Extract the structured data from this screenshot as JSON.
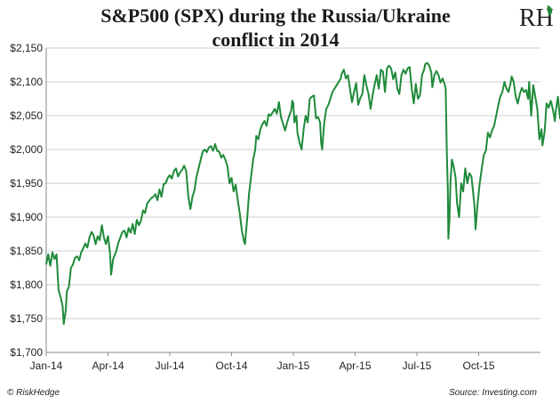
{
  "header": {
    "title_line1": "S&P500 (SPX) during the Russia/Ukraine",
    "title_line2": "conflict in 2014"
  },
  "logo": {
    "text": "RH",
    "accent_color": "#1f8a3a"
  },
  "footer": {
    "copyright": "© RiskHedge",
    "source": "Source: Investing.com"
  },
  "chart_data": {
    "type": "line",
    "title": "S&P500 (SPX) during the Russia/Ukraine conflict in 2014",
    "xlabel": "",
    "ylabel": "",
    "ylim": [
      1700,
      2150
    ],
    "y_ticks": [
      1700,
      1750,
      1800,
      1850,
      1900,
      1950,
      2000,
      2050,
      2100,
      2150
    ],
    "y_tick_labels": [
      "$1,700",
      "$1,750",
      "$1,800",
      "$1,850",
      "$1,900",
      "$1,950",
      "$2,000",
      "$2,050",
      "$2,100",
      "$2,150"
    ],
    "x_range": [
      0,
      24
    ],
    "x_ticks": [
      0,
      3,
      6,
      9,
      12,
      15,
      18,
      21
    ],
    "x_tick_labels": [
      "Jan-14",
      "Apr-14",
      "Jul-14",
      "Oct-14",
      "Jan-15",
      "Apr-15",
      "Jul-15",
      "Oct-15"
    ],
    "grid": true,
    "series": [
      {
        "name": "SPX",
        "color": "#1f8a3a",
        "points": [
          [
            0.0,
            1830
          ],
          [
            0.1,
            1845
          ],
          [
            0.2,
            1828
          ],
          [
            0.3,
            1848
          ],
          [
            0.4,
            1838
          ],
          [
            0.5,
            1845
          ],
          [
            0.6,
            1792
          ],
          [
            0.7,
            1782
          ],
          [
            0.8,
            1768
          ],
          [
            0.85,
            1742
          ],
          [
            0.95,
            1762
          ],
          [
            1.0,
            1790
          ],
          [
            1.1,
            1797
          ],
          [
            1.2,
            1825
          ],
          [
            1.3,
            1830
          ],
          [
            1.4,
            1840
          ],
          [
            1.5,
            1842
          ],
          [
            1.6,
            1836
          ],
          [
            1.7,
            1848
          ],
          [
            1.8,
            1854
          ],
          [
            1.9,
            1861
          ],
          [
            2.0,
            1855
          ],
          [
            2.1,
            1870
          ],
          [
            2.2,
            1878
          ],
          [
            2.3,
            1873
          ],
          [
            2.4,
            1860
          ],
          [
            2.5,
            1872
          ],
          [
            2.6,
            1866
          ],
          [
            2.7,
            1888
          ],
          [
            2.8,
            1870
          ],
          [
            2.9,
            1860
          ],
          [
            3.0,
            1872
          ],
          [
            3.1,
            1846
          ],
          [
            3.15,
            1815
          ],
          [
            3.25,
            1838
          ],
          [
            3.4,
            1850
          ],
          [
            3.5,
            1862
          ],
          [
            3.6,
            1870
          ],
          [
            3.7,
            1878
          ],
          [
            3.8,
            1880
          ],
          [
            3.9,
            1870
          ],
          [
            4.0,
            1884
          ],
          [
            4.1,
            1877
          ],
          [
            4.2,
            1890
          ],
          [
            4.3,
            1875
          ],
          [
            4.4,
            1896
          ],
          [
            4.5,
            1888
          ],
          [
            4.6,
            1895
          ],
          [
            4.7,
            1910
          ],
          [
            4.8,
            1906
          ],
          [
            4.9,
            1920
          ],
          [
            5.0,
            1924
          ],
          [
            5.1,
            1928
          ],
          [
            5.2,
            1930
          ],
          [
            5.3,
            1934
          ],
          [
            5.4,
            1925
          ],
          [
            5.5,
            1941
          ],
          [
            5.6,
            1930
          ],
          [
            5.7,
            1949
          ],
          [
            5.8,
            1950
          ],
          [
            5.9,
            1958
          ],
          [
            6.0,
            1962
          ],
          [
            6.1,
            1957
          ],
          [
            6.2,
            1968
          ],
          [
            6.3,
            1972
          ],
          [
            6.4,
            1960
          ],
          [
            6.5,
            1966
          ],
          [
            6.6,
            1970
          ],
          [
            6.7,
            1976
          ],
          [
            6.8,
            1968
          ],
          [
            6.9,
            1930
          ],
          [
            6.95,
            1921
          ],
          [
            7.0,
            1912
          ],
          [
            7.1,
            1930
          ],
          [
            7.2,
            1940
          ],
          [
            7.3,
            1960
          ],
          [
            7.4,
            1972
          ],
          [
            7.5,
            1985
          ],
          [
            7.6,
            1997
          ],
          [
            7.7,
            2000
          ],
          [
            7.8,
            1996
          ],
          [
            7.9,
            2003
          ],
          [
            8.0,
            2005
          ],
          [
            8.1,
            1998
          ],
          [
            8.2,
            2008
          ],
          [
            8.3,
            1998
          ],
          [
            8.4,
            1997
          ],
          [
            8.5,
            1988
          ],
          [
            8.6,
            1992
          ],
          [
            8.7,
            1985
          ],
          [
            8.8,
            1975
          ],
          [
            8.9,
            1950
          ],
          [
            9.0,
            1958
          ],
          [
            9.1,
            1938
          ],
          [
            9.2,
            1948
          ],
          [
            9.3,
            1925
          ],
          [
            9.4,
            1905
          ],
          [
            9.5,
            1880
          ],
          [
            9.6,
            1865
          ],
          [
            9.65,
            1860
          ],
          [
            9.75,
            1895
          ],
          [
            9.85,
            1935
          ],
          [
            9.95,
            1960
          ],
          [
            10.05,
            1985
          ],
          [
            10.15,
            2000
          ],
          [
            10.2,
            2020
          ],
          [
            10.3,
            2015
          ],
          [
            10.4,
            2030
          ],
          [
            10.5,
            2038
          ],
          [
            10.6,
            2042
          ],
          [
            10.7,
            2035
          ],
          [
            10.8,
            2052
          ],
          [
            10.9,
            2050
          ],
          [
            11.0,
            2055
          ],
          [
            11.1,
            2060
          ],
          [
            11.2,
            2053
          ],
          [
            11.3,
            2070
          ],
          [
            11.4,
            2048
          ],
          [
            11.5,
            2038
          ],
          [
            11.6,
            2028
          ],
          [
            11.7,
            2040
          ],
          [
            11.8,
            2050
          ],
          [
            11.9,
            2058
          ],
          [
            11.95,
            2072
          ],
          [
            12.0,
            2068
          ],
          [
            12.05,
            2040
          ],
          [
            12.15,
            2050
          ],
          [
            12.2,
            2025
          ],
          [
            12.3,
            2010
          ],
          [
            12.4,
            2000
          ],
          [
            12.5,
            2030
          ],
          [
            12.6,
            2050
          ],
          [
            12.7,
            2040
          ],
          [
            12.8,
            2075
          ],
          [
            12.9,
            2078
          ],
          [
            13.0,
            2080
          ],
          [
            13.1,
            2046
          ],
          [
            13.2,
            2048
          ],
          [
            13.3,
            2040
          ],
          [
            13.35,
            2010
          ],
          [
            13.4,
            2000
          ],
          [
            13.5,
            2040
          ],
          [
            13.6,
            2060
          ],
          [
            13.7,
            2066
          ],
          [
            13.8,
            2075
          ],
          [
            13.9,
            2085
          ],
          [
            14.0,
            2090
          ],
          [
            14.1,
            2095
          ],
          [
            14.2,
            2100
          ],
          [
            14.3,
            2105
          ],
          [
            14.35,
            2112
          ],
          [
            14.45,
            2118
          ],
          [
            14.55,
            2105
          ],
          [
            14.65,
            2110
          ],
          [
            14.75,
            2090
          ],
          [
            14.85,
            2070
          ],
          [
            14.95,
            2085
          ],
          [
            15.05,
            2098
          ],
          [
            15.15,
            2066
          ],
          [
            15.25,
            2076
          ],
          [
            15.35,
            2082
          ],
          [
            15.45,
            2110
          ],
          [
            15.55,
            2095
          ],
          [
            15.65,
            2082
          ],
          [
            15.75,
            2060
          ],
          [
            15.85,
            2080
          ],
          [
            15.95,
            2096
          ],
          [
            16.05,
            2110
          ],
          [
            16.15,
            2090
          ],
          [
            16.25,
            2118
          ],
          [
            16.35,
            2115
          ],
          [
            16.45,
            2085
          ],
          [
            16.55,
            2120
          ],
          [
            16.65,
            2124
          ],
          [
            16.75,
            2120
          ],
          [
            16.85,
            2104
          ],
          [
            16.95,
            2114
          ],
          [
            17.05,
            2090
          ],
          [
            17.15,
            2082
          ],
          [
            17.25,
            2110
          ],
          [
            17.35,
            2118
          ],
          [
            17.45,
            2112
          ],
          [
            17.55,
            2120
          ],
          [
            17.65,
            2122
          ],
          [
            17.75,
            2090
          ],
          [
            17.85,
            2068
          ],
          [
            17.95,
            2097
          ],
          [
            18.05,
            2075
          ],
          [
            18.15,
            2080
          ],
          [
            18.25,
            2110
          ],
          [
            18.35,
            2118
          ],
          [
            18.4,
            2126
          ],
          [
            18.5,
            2128
          ],
          [
            18.6,
            2124
          ],
          [
            18.7,
            2114
          ],
          [
            18.75,
            2092
          ],
          [
            18.85,
            2110
          ],
          [
            18.95,
            2116
          ],
          [
            19.05,
            2110
          ],
          [
            19.15,
            2099
          ],
          [
            19.25,
            2105
          ],
          [
            19.35,
            2096
          ],
          [
            19.4,
            2090
          ],
          [
            19.45,
            2000
          ],
          [
            19.5,
            1940
          ],
          [
            19.53,
            1868
          ],
          [
            19.58,
            1895
          ],
          [
            19.63,
            1952
          ],
          [
            19.7,
            1985
          ],
          [
            19.78,
            1976
          ],
          [
            19.88,
            1958
          ],
          [
            19.95,
            1920
          ],
          [
            20.05,
            1900
          ],
          [
            20.15,
            1950
          ],
          [
            20.25,
            1938
          ],
          [
            20.35,
            1972
          ],
          [
            20.45,
            1950
          ],
          [
            20.55,
            1965
          ],
          [
            20.65,
            1960
          ],
          [
            20.72,
            1940
          ],
          [
            20.8,
            1915
          ],
          [
            20.85,
            1882
          ],
          [
            20.95,
            1920
          ],
          [
            21.05,
            1950
          ],
          [
            21.15,
            1972
          ],
          [
            21.25,
            1992
          ],
          [
            21.35,
            1998
          ],
          [
            21.45,
            2025
          ],
          [
            21.55,
            2018
          ],
          [
            21.65,
            2028
          ],
          [
            21.75,
            2035
          ],
          [
            21.85,
            2050
          ],
          [
            21.95,
            2065
          ],
          [
            22.05,
            2078
          ],
          [
            22.15,
            2085
          ],
          [
            22.25,
            2100
          ],
          [
            22.35,
            2090
          ],
          [
            22.45,
            2085
          ],
          [
            22.55,
            2098
          ],
          [
            22.6,
            2108
          ],
          [
            22.7,
            2100
          ],
          [
            22.8,
            2078
          ],
          [
            22.9,
            2068
          ],
          [
            23.0,
            2082
          ],
          [
            23.1,
            2091
          ],
          [
            23.2,
            2085
          ],
          [
            23.3,
            2088
          ],
          [
            23.4,
            2075
          ],
          [
            23.45,
            2100
          ],
          [
            23.55,
            2050
          ],
          [
            23.65,
            2095
          ],
          [
            23.75,
            2078
          ],
          [
            23.85,
            2060
          ],
          [
            23.95,
            2015
          ],
          [
            24.05,
            2030
          ],
          [
            24.1,
            2006
          ],
          [
            24.2,
            2025
          ],
          [
            24.3,
            2068
          ],
          [
            24.4,
            2062
          ],
          [
            24.5,
            2072
          ],
          [
            24.6,
            2060
          ],
          [
            24.7,
            2042
          ],
          [
            24.75,
            2058
          ],
          [
            24.85,
            2078
          ],
          [
            24.95,
            2045
          ]
        ]
      }
    ]
  }
}
